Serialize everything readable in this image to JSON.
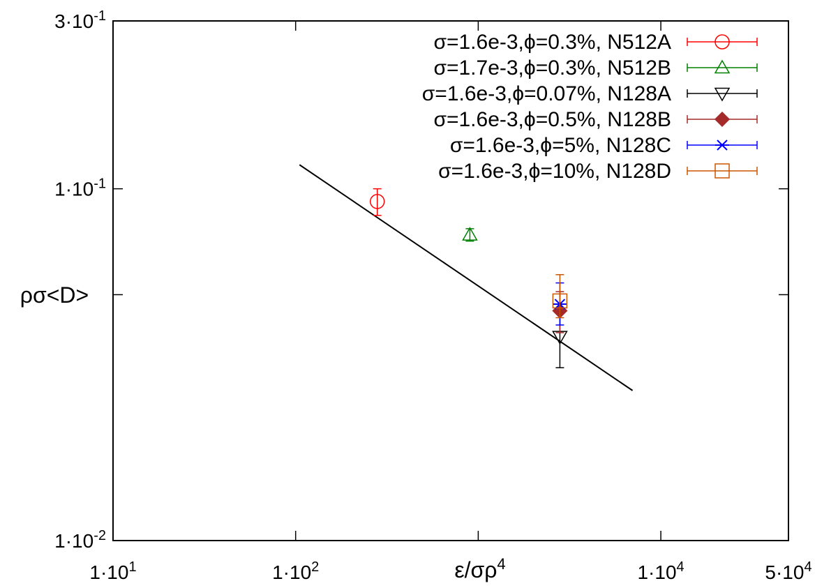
{
  "chart_data": {
    "type": "scatter",
    "title": "",
    "xlabel": "ε/σρ",
    "xlabel_sup": "4",
    "ylabel": "ρσ<D>",
    "xscale": "log",
    "yscale": "log",
    "xlim": [
      10,
      50000
    ],
    "ylim": [
      0.01,
      0.3
    ],
    "grid": false,
    "legend_position": "top-right",
    "x_ticks": [
      {
        "value": 10,
        "base": "1·10",
        "exp": "1"
      },
      {
        "value": 100,
        "base": "1·10",
        "exp": "2"
      },
      {
        "value": 10000,
        "base": "1·10",
        "exp": "4"
      },
      {
        "value": 50000,
        "base": "5·10",
        "exp": "4"
      }
    ],
    "x_minor_ticks": [
      1000
    ],
    "y_ticks": [
      {
        "value": 0.01,
        "base": "1·10",
        "exp": "-2"
      },
      {
        "value": 0.1,
        "base": "1·10",
        "exp": "-1"
      },
      {
        "value": 0.3,
        "base": "3·10",
        "exp": "-1"
      }
    ],
    "y_minor_ticks": [
      0.05
    ],
    "series": [
      {
        "name": "σ=1.6e-3,ϕ=0.3%, N512A",
        "color": "#ff0000",
        "marker": "circle-open",
        "points": [
          {
            "x": 280,
            "y": 0.092,
            "ylo": 0.084,
            "yhi": 0.1
          }
        ]
      },
      {
        "name": "σ=1.7e-3,ϕ=0.3%, N512B",
        "color": "#008000",
        "marker": "triangle-up-open",
        "points": [
          {
            "x": 900,
            "y": 0.074,
            "ylo": 0.071,
            "yhi": 0.077
          }
        ]
      },
      {
        "name": "σ=1.6e-3,ϕ=0.07%, N128A",
        "color": "#000000",
        "marker": "triangle-down-open",
        "points": [
          {
            "x": 2800,
            "y": 0.038,
            "ylo": 0.031,
            "yhi": 0.045
          }
        ]
      },
      {
        "name": "σ=1.6e-3,ϕ=0.5%, N128B",
        "color": "#a52a2a",
        "marker": "diamond-filled",
        "points": [
          {
            "x": 2800,
            "y": 0.045,
            "ylo": 0.039,
            "yhi": 0.051
          }
        ]
      },
      {
        "name": "σ=1.6e-3,ϕ=5%, N128C",
        "color": "#0000ff",
        "marker": "asterisk",
        "points": [
          {
            "x": 2800,
            "y": 0.047,
            "ylo": 0.041,
            "yhi": 0.054
          }
        ]
      },
      {
        "name": "σ=1.6e-3,ϕ=10%, N128D",
        "color": "#cc5500",
        "marker": "square-open",
        "points": [
          {
            "x": 2800,
            "y": 0.048,
            "ylo": 0.043,
            "yhi": 0.057
          }
        ]
      }
    ],
    "fit_line": {
      "color": "#000000",
      "x": [
        105,
        7000
      ],
      "y": [
        0.117,
        0.0267
      ]
    }
  }
}
